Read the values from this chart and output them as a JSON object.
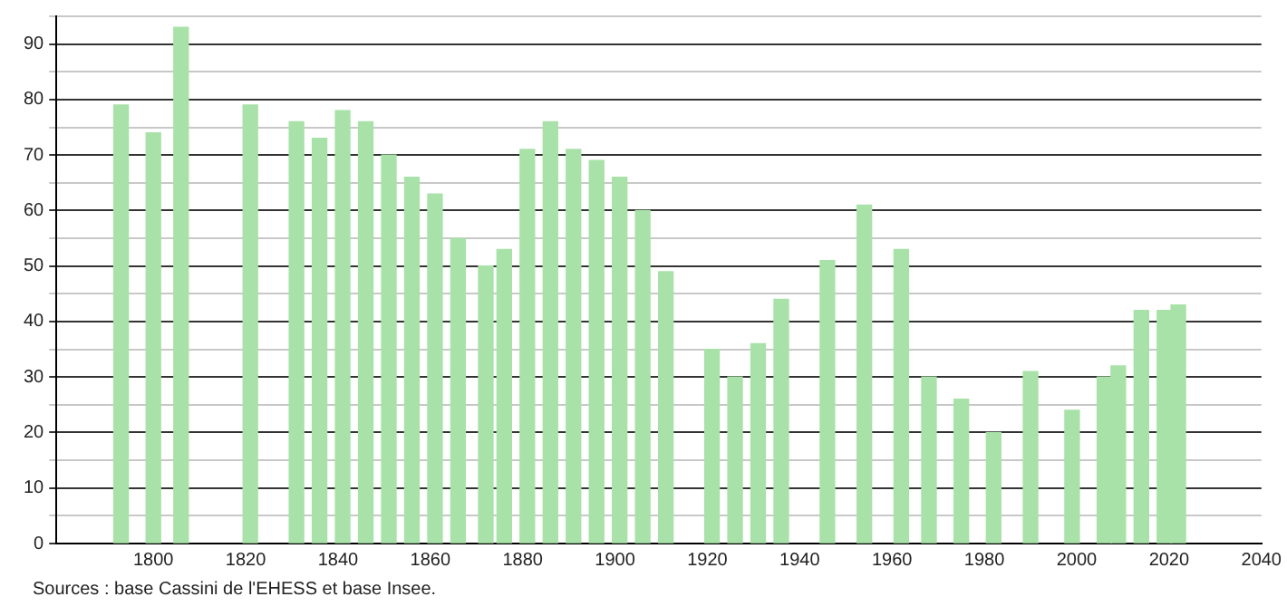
{
  "chart_data": {
    "type": "bar",
    "color": "#a8e2a8",
    "x": [
      1793,
      1800,
      1806,
      1821,
      1831,
      1836,
      1841,
      1846,
      1851,
      1856,
      1861,
      1866,
      1872,
      1876,
      1881,
      1886,
      1891,
      1896,
      1901,
      1906,
      1911,
      1921,
      1926,
      1931,
      1936,
      1946,
      1954,
      1962,
      1968,
      1975,
      1982,
      1990,
      1999,
      2006,
      2009,
      2014,
      2019,
      2022
    ],
    "values": [
      79,
      74,
      93,
      79,
      76,
      73,
      78,
      76,
      70,
      66,
      63,
      55,
      50,
      53,
      71,
      76,
      71,
      69,
      66,
      60,
      49,
      35,
      30,
      36,
      44,
      51,
      61,
      53,
      30,
      26,
      20,
      31,
      24,
      30,
      32,
      42,
      42,
      43
    ],
    "xlim": [
      1779,
      2040
    ],
    "xticks": [
      1800,
      1820,
      1840,
      1860,
      1880,
      1900,
      1920,
      1940,
      1960,
      1980,
      2000,
      2020,
      2040
    ],
    "ylim": [
      0,
      95
    ],
    "yticks": [
      0,
      {
        "value": 5,
        "label": null
      },
      10,
      {
        "value": 15,
        "label": null
      },
      20,
      {
        "value": 25,
        "label": null
      },
      30,
      {
        "value": 35,
        "label": null
      },
      40,
      {
        "value": 45,
        "label": null
      },
      50,
      {
        "value": 55,
        "label": null
      },
      60,
      {
        "value": 65,
        "label": null
      },
      70,
      {
        "value": 75,
        "label": null
      },
      80,
      {
        "value": 85,
        "label": null
      },
      90,
      {
        "value": 95,
        "label": null
      }
    ],
    "grid": "y",
    "legend": false,
    "annotations": [
      "Sources : base Cassini de l'EHESS et base Insee."
    ]
  }
}
